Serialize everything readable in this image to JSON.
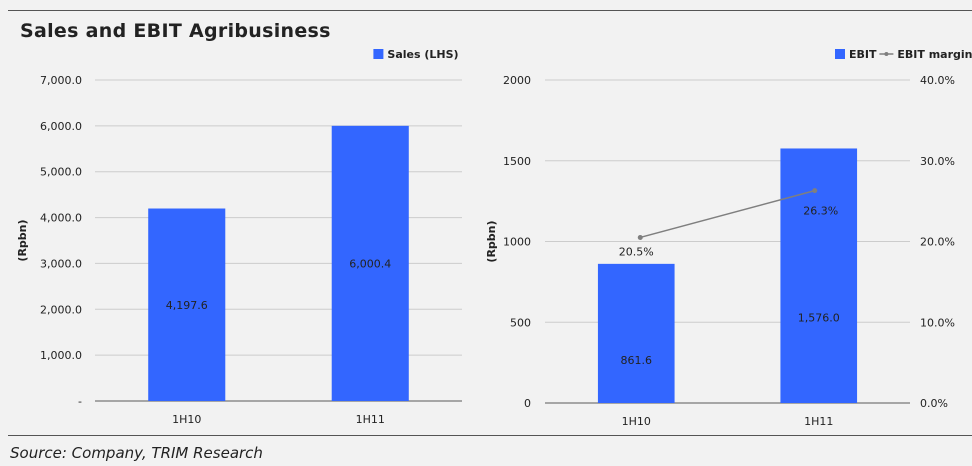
{
  "title": "Sales and EBIT Agribusiness",
  "source": "Source: Company, TRIM Research",
  "colors": {
    "bar": "#3366ff",
    "line": "#7f7f7f",
    "grid": "#cccccc",
    "axis": "#595959"
  },
  "chart_data": [
    {
      "type": "bar",
      "categories": [
        "1H10",
        "1H11"
      ],
      "series": [
        {
          "name": "Sales (LHS)",
          "values": [
            4197.6,
            6000.4
          ],
          "value_labels": [
            "4,197.6",
            "6,000.4"
          ]
        }
      ],
      "ylabel": "(Rpbn)",
      "ylim": [
        0,
        7000
      ],
      "yticks": [
        0,
        1000,
        2000,
        3000,
        4000,
        5000,
        6000,
        7000
      ],
      "ytick_labels": [
        "-",
        "1,000.0",
        "2,000.0",
        "3,000.0",
        "4,000.0",
        "5,000.0",
        "6,000.0",
        "7,000.0"
      ],
      "grid": true,
      "legend": "top-right"
    },
    {
      "type": "bar",
      "categories": [
        "1H10",
        "1H11"
      ],
      "series": [
        {
          "name": "EBIT",
          "type": "bar",
          "axis": "left",
          "values": [
            861.6,
            1576.0
          ],
          "value_labels": [
            "861.6",
            "1,576.0"
          ]
        },
        {
          "name": "EBIT margin",
          "type": "line",
          "axis": "right",
          "values": [
            20.5,
            26.3
          ],
          "value_labels": [
            "20.5%",
            "26.3%"
          ]
        }
      ],
      "ylabel": "(Rpbn)",
      "ylim": [
        0,
        2000
      ],
      "yticks": [
        0,
        500,
        1000,
        1500,
        2000
      ],
      "ytick_labels": [
        "0",
        "500",
        "1000",
        "1500",
        "2000"
      ],
      "y2lim": [
        0,
        40
      ],
      "y2ticks": [
        0,
        10,
        20,
        30,
        40
      ],
      "y2tick_labels": [
        "0.0%",
        "10.0%",
        "20.0%",
        "30.0%",
        "40.0%"
      ],
      "grid": true,
      "legend": "top-right"
    }
  ]
}
